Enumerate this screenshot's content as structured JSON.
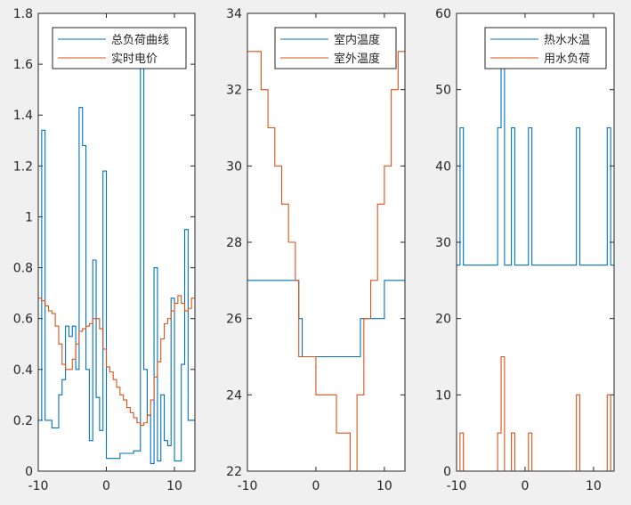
{
  "chart_data": [
    {
      "type": "line",
      "step": true,
      "xlim": [
        -10,
        13
      ],
      "ylim": [
        0,
        1.8
      ],
      "xticks": [
        "-10",
        "0",
        "10"
      ],
      "yticks": [
        "0",
        "0.2",
        "0.4",
        "0.6",
        "0.8",
        "1",
        "1.2",
        "1.4",
        "1.6",
        "1.8"
      ],
      "legend_position": "top-right",
      "series": [
        {
          "name": "总负荷曲线",
          "color": "#0072bd",
          "points": [
            [
              -10,
              0.2
            ],
            [
              -9.5,
              1.34
            ],
            [
              -9,
              0.2
            ],
            [
              -8,
              0.17
            ],
            [
              -7,
              0.3
            ],
            [
              -6.5,
              0.36
            ],
            [
              -6,
              0.57
            ],
            [
              -5.5,
              0.53
            ],
            [
              -5,
              0.57
            ],
            [
              -4.5,
              0.4
            ],
            [
              -4,
              1.43
            ],
            [
              -3.5,
              1.28
            ],
            [
              -3,
              0.4
            ],
            [
              -2.5,
              0.12
            ],
            [
              -2,
              0.83
            ],
            [
              -1.5,
              0.29
            ],
            [
              -1,
              0.16
            ],
            [
              -0.5,
              1.18
            ],
            [
              0,
              0.05
            ],
            [
              1,
              0.05
            ],
            [
              2,
              0.07
            ],
            [
              3,
              0.07
            ],
            [
              4,
              0.08
            ],
            [
              5,
              1.6
            ],
            [
              5.5,
              0.4
            ],
            [
              6,
              0.22
            ],
            [
              6.5,
              0.03
            ],
            [
              7,
              0.8
            ],
            [
              7.5,
              0.04
            ],
            [
              8,
              0.3
            ],
            [
              8.5,
              0.12
            ],
            [
              9,
              0.1
            ],
            [
              9.5,
              0.68
            ],
            [
              10,
              0.04
            ],
            [
              11,
              0.42
            ],
            [
              11.5,
              0.95
            ],
            [
              12,
              0.2
            ],
            [
              13,
              0.2
            ]
          ]
        },
        {
          "name": "实时电价",
          "color": "#d95319",
          "points": [
            [
              -10,
              0.68
            ],
            [
              -9.5,
              0.67
            ],
            [
              -9,
              0.65
            ],
            [
              -8.5,
              0.63
            ],
            [
              -8,
              0.62
            ],
            [
              -7.5,
              0.57
            ],
            [
              -7,
              0.5
            ],
            [
              -6.5,
              0.42
            ],
            [
              -6,
              0.4
            ],
            [
              -5.5,
              0.4
            ],
            [
              -5,
              0.44
            ],
            [
              -4.5,
              0.5
            ],
            [
              -4,
              0.55
            ],
            [
              -3.5,
              0.56
            ],
            [
              -3,
              0.57
            ],
            [
              -2.5,
              0.58
            ],
            [
              -2,
              0.6
            ],
            [
              -1.5,
              0.6
            ],
            [
              -1,
              0.56
            ],
            [
              -0.5,
              0.48
            ],
            [
              0,
              0.41
            ],
            [
              0.5,
              0.39
            ],
            [
              1,
              0.36
            ],
            [
              1.5,
              0.33
            ],
            [
              2,
              0.3
            ],
            [
              2.5,
              0.28
            ],
            [
              3,
              0.25
            ],
            [
              3.5,
              0.23
            ],
            [
              4,
              0.21
            ],
            [
              4.5,
              0.19
            ],
            [
              5,
              0.18
            ],
            [
              5.5,
              0.19
            ],
            [
              6,
              0.22
            ],
            [
              6.5,
              0.28
            ],
            [
              7,
              0.37
            ],
            [
              7.5,
              0.43
            ],
            [
              8,
              0.52
            ],
            [
              8.5,
              0.58
            ],
            [
              9,
              0.6
            ],
            [
              9.5,
              0.63
            ],
            [
              10,
              0.66
            ],
            [
              10.5,
              0.69
            ],
            [
              11,
              0.66
            ],
            [
              11.5,
              0.63
            ],
            [
              12,
              0.64
            ],
            [
              12.5,
              0.68
            ],
            [
              13,
              0.68
            ]
          ]
        }
      ]
    },
    {
      "type": "line",
      "step": true,
      "xlim": [
        -10,
        13
      ],
      "ylim": [
        22,
        34
      ],
      "xticks": [
        "-10",
        "0",
        "10"
      ],
      "yticks": [
        "22",
        "24",
        "26",
        "28",
        "30",
        "32",
        "34"
      ],
      "legend_position": "top-right",
      "series": [
        {
          "name": "室内温度",
          "color": "#0072bd",
          "points": [
            [
              -10,
              27
            ],
            [
              -3,
              27
            ],
            [
              -2.5,
              26
            ],
            [
              -2,
              25
            ],
            [
              6.5,
              26
            ],
            [
              10,
              27
            ],
            [
              13,
              27
            ]
          ]
        },
        {
          "name": "室外温度",
          "color": "#d95319",
          "points": [
            [
              -10,
              33
            ],
            [
              -8,
              32
            ],
            [
              -7,
              31
            ],
            [
              -6,
              30
            ],
            [
              -5,
              29
            ],
            [
              -4,
              28
            ],
            [
              -3,
              27
            ],
            [
              -2.5,
              25
            ],
            [
              0,
              24
            ],
            [
              3,
              23
            ],
            [
              5,
              22
            ],
            [
              6,
              24
            ],
            [
              7,
              26
            ],
            [
              8,
              27
            ],
            [
              9,
              29
            ],
            [
              10,
              30
            ],
            [
              11,
              32
            ],
            [
              12,
              33
            ],
            [
              13,
              33
            ]
          ]
        }
      ]
    },
    {
      "type": "line",
      "step": true,
      "xlim": [
        -10,
        13
      ],
      "ylim": [
        0,
        60
      ],
      "xticks": [
        "-10",
        "0",
        "10"
      ],
      "yticks": [
        "0",
        "10",
        "20",
        "30",
        "40",
        "50",
        "60"
      ],
      "legend_position": "top-right",
      "series": [
        {
          "name": "热水水温",
          "color": "#0072bd",
          "points": [
            [
              -10,
              27
            ],
            [
              -9.5,
              45
            ],
            [
              -9,
              27
            ],
            [
              -4,
              45
            ],
            [
              -3.5,
              53
            ],
            [
              -3,
              27
            ],
            [
              -2,
              45
            ],
            [
              -1.5,
              27
            ],
            [
              -1,
              27
            ],
            [
              -0.5,
              27
            ],
            [
              0,
              27
            ],
            [
              0.5,
              45
            ],
            [
              1,
              27
            ],
            [
              7.5,
              45
            ],
            [
              8,
              27
            ],
            [
              12,
              45
            ],
            [
              12.5,
              27
            ],
            [
              13,
              27
            ]
          ]
        },
        {
          "name": "用水负荷",
          "color": "#d95319",
          "points": [
            [
              -10,
              0
            ],
            [
              -9.5,
              5
            ],
            [
              -9,
              0
            ],
            [
              -4,
              5
            ],
            [
              -3.5,
              15
            ],
            [
              -3,
              0
            ],
            [
              -2,
              5
            ],
            [
              -1.5,
              0
            ],
            [
              0.5,
              5
            ],
            [
              1,
              0
            ],
            [
              7.5,
              10
            ],
            [
              8,
              0
            ],
            [
              12,
              10
            ],
            [
              12.5,
              0
            ],
            [
              13,
              0
            ]
          ]
        }
      ]
    }
  ]
}
